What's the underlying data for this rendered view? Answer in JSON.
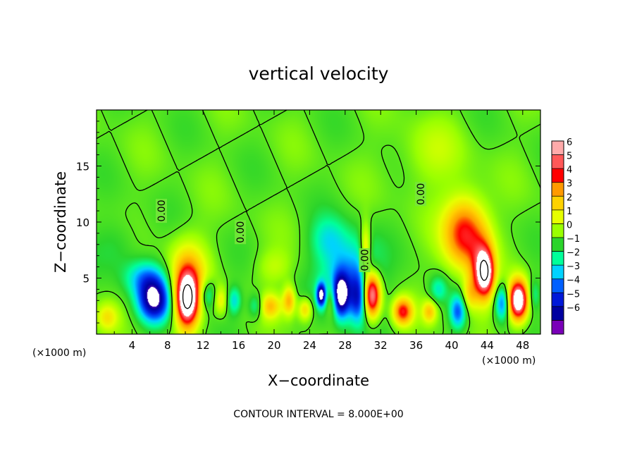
{
  "chart_data": {
    "type": "heatmap",
    "title": "vertical velocity",
    "xlabel": "X−coordinate",
    "ylabel": "Z−coordinate",
    "x_unit_left": "(×1000 m)",
    "x_unit_right": "(×1000 m)",
    "xlim": [
      0,
      50
    ],
    "ylim": [
      0,
      20
    ],
    "x_ticks": [
      4,
      8,
      12,
      16,
      20,
      24,
      28,
      32,
      36,
      40,
      44,
      48
    ],
    "x_tick_labels": [
      "4",
      "8",
      "12",
      "16",
      "20",
      "24",
      "28",
      "32",
      "36",
      "40",
      "44",
      "48"
    ],
    "y_ticks": [
      5,
      10,
      15
    ],
    "y_tick_labels": [
      "5",
      "10",
      "15"
    ],
    "contour_interval_text": "CONTOUR INTERVAL = 8.000E+00",
    "contour_labels": [
      {
        "text": "0.00",
        "x": 7.3,
        "y": 11.0
      },
      {
        "text": "0.00",
        "x": 16.2,
        "y": 9.1
      },
      {
        "text": "0.00",
        "x": 30.2,
        "y": 6.6
      },
      {
        "text": "0.00",
        "x": 36.5,
        "y": 12.5
      }
    ],
    "colorbar": {
      "min": -6,
      "max": 6,
      "labels": [
        "6",
        "5",
        "4",
        "3",
        "2",
        "1",
        "0",
        "−1",
        "−2",
        "−3",
        "−4",
        "−5",
        "−6"
      ],
      "colors": [
        "#ffaaaa",
        "#ff5858",
        "#ff0000",
        "#ff9a00",
        "#ffd200",
        "#e6ff00",
        "#9aff00",
        "#2bd42b",
        "#00ff9a",
        "#00d2ff",
        "#0060ff",
        "#0018d8",
        "#0000a0",
        "#7a00b8"
      ]
    },
    "features": [
      {
        "x": 6.5,
        "y": 3.0,
        "sx": 1.8,
        "sy": 1.9,
        "a": -6
      },
      {
        "x": 5.5,
        "y": 5.0,
        "sx": 2.3,
        "sy": 1.6,
        "a": -2.5
      },
      {
        "x": 10.2,
        "y": 3.0,
        "sx": 1.3,
        "sy": 2.4,
        "a": 8
      },
      {
        "x": 10.3,
        "y": 5.5,
        "sx": 2.2,
        "sy": 3.0,
        "a": 2.5
      },
      {
        "x": 12.5,
        "y": 3.5,
        "sx": 1.0,
        "sy": 1.3,
        "a": -2.2
      },
      {
        "x": 14.0,
        "y": 3.0,
        "sx": 0.8,
        "sy": 1.2,
        "a": 1.8
      },
      {
        "x": 15.5,
        "y": 3.0,
        "sx": 0.8,
        "sy": 1.2,
        "a": -2.2
      },
      {
        "x": 18.0,
        "y": 2.5,
        "sx": 0.9,
        "sy": 1.1,
        "a": -2.0
      },
      {
        "x": 19.5,
        "y": 2.5,
        "sx": 1.3,
        "sy": 1.1,
        "a": 2.6
      },
      {
        "x": 21.7,
        "y": 3.0,
        "sx": 0.7,
        "sy": 1.3,
        "a": 3.0
      },
      {
        "x": 23.5,
        "y": 2.2,
        "sx": 0.8,
        "sy": 1.0,
        "a": 2.5
      },
      {
        "x": 25.3,
        "y": 3.5,
        "sx": 0.5,
        "sy": 1.0,
        "a": -6
      },
      {
        "x": 26.5,
        "y": 3.0,
        "sx": 0.7,
        "sy": 1.6,
        "a": 2.2
      },
      {
        "x": 28.5,
        "y": 5.0,
        "sx": 3.0,
        "sy": 3.5,
        "a": -3.6
      },
      {
        "x": 27.5,
        "y": 3.5,
        "sx": 0.9,
        "sy": 1.8,
        "a": -5.5
      },
      {
        "x": 29.5,
        "y": 3.2,
        "sx": 0.9,
        "sy": 2.0,
        "a": -3.0
      },
      {
        "x": 31.0,
        "y": 3.5,
        "sx": 1.0,
        "sy": 2.0,
        "a": 7.5
      },
      {
        "x": 30.3,
        "y": 7.5,
        "sx": 0.6,
        "sy": 2.2,
        "a": 3.0
      },
      {
        "x": 26.0,
        "y": 8.5,
        "sx": 2.0,
        "sy": 2.0,
        "a": -1.6
      },
      {
        "x": 34.5,
        "y": 2.0,
        "sx": 1.1,
        "sy": 1.2,
        "a": 4.5
      },
      {
        "x": 37.5,
        "y": 2.0,
        "sx": 0.8,
        "sy": 1.0,
        "a": 2.5
      },
      {
        "x": 38.5,
        "y": 4.0,
        "sx": 1.0,
        "sy": 1.2,
        "a": -1.8
      },
      {
        "x": 41.5,
        "y": 9.0,
        "sx": 2.4,
        "sy": 3.2,
        "a": 4.8
      },
      {
        "x": 43.5,
        "y": 5.5,
        "sx": 1.3,
        "sy": 2.8,
        "a": 4.5
      },
      {
        "x": 43.8,
        "y": 5.5,
        "sx": 0.9,
        "sy": 1.8,
        "a": 4.0
      },
      {
        "x": 40.7,
        "y": 2.0,
        "sx": 0.9,
        "sy": 1.5,
        "a": -3.5
      },
      {
        "x": 42.0,
        "y": 3.5,
        "sx": 0.9,
        "sy": 1.5,
        "a": 2.0
      },
      {
        "x": 45.7,
        "y": 2.8,
        "sx": 0.8,
        "sy": 1.5,
        "a": -3.5
      },
      {
        "x": 47.5,
        "y": 3.0,
        "sx": 1.1,
        "sy": 1.8,
        "a": 8
      },
      {
        "x": 49.3,
        "y": 3.5,
        "sx": 0.7,
        "sy": 1.4,
        "a": -1.5
      },
      {
        "x": 1.2,
        "y": 1.5,
        "sx": 1.2,
        "sy": 1.2,
        "a": 1.8
      },
      {
        "x": 2.5,
        "y": 8.0,
        "sx": 2.5,
        "sy": 2.5,
        "a": -0.8
      },
      {
        "x": 37.5,
        "y": 16.0,
        "sx": 4.0,
        "sy": 3.0,
        "a": 0.9
      },
      {
        "x": 20.0,
        "y": 6.0,
        "sx": 2.0,
        "sy": 1.5,
        "a": 1.0
      }
    ]
  }
}
